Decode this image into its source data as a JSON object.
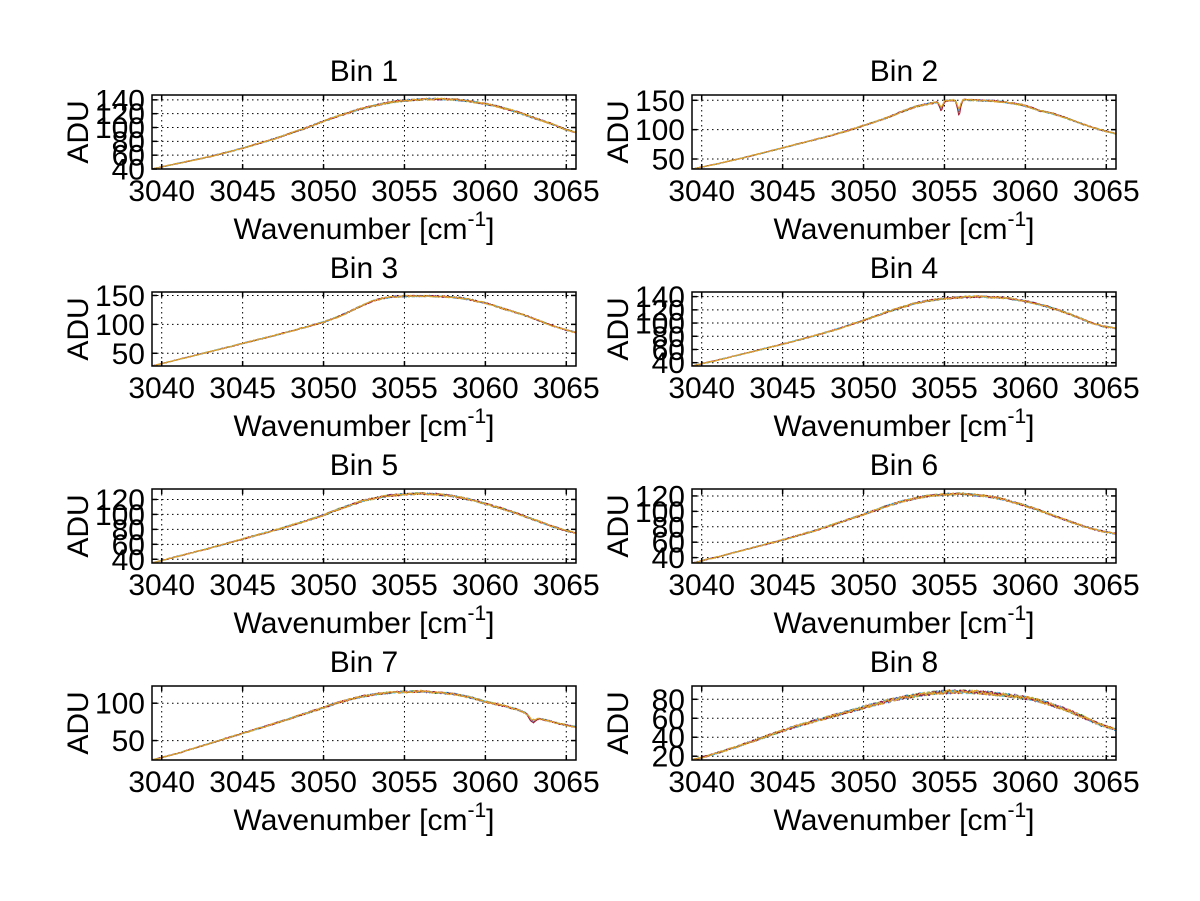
{
  "figure": {
    "background": "#ffffff",
    "axis_color": "#000000",
    "grid_color": "#000000",
    "series_colors": [
      "#0072BD",
      "#77AC30",
      "#7E2F8E",
      "#4DBEEE",
      "#A2142F"
    ],
    "top_series_color": "#DFA32B",
    "ylabel": "ADU",
    "xlabel_main": "Wavenumber [cm",
    "xlabel_sup": "-1",
    "xlabel_close": "]"
  },
  "chart_data": [
    {
      "type": "line",
      "title": "Bin 1",
      "xlabel": "Wavenumber [cm^-1]",
      "ylabel": "ADU",
      "xlim": [
        3039.4,
        3065.6
      ],
      "xticks": [
        3040,
        3045,
        3050,
        3055,
        3060,
        3065
      ],
      "ylim": [
        40,
        147
      ],
      "yticks": [
        40,
        60,
        80,
        100,
        120,
        140
      ],
      "grid": true,
      "seed": 11,
      "noise_amp": 1.5,
      "spikes": [],
      "profile": [
        [
          3039.4,
          40
        ],
        [
          3041,
          48
        ],
        [
          3043,
          58
        ],
        [
          3045,
          70
        ],
        [
          3046,
          77
        ],
        [
          3047,
          84
        ],
        [
          3048,
          92
        ],
        [
          3049,
          100
        ],
        [
          3050,
          109
        ],
        [
          3050.7,
          115
        ],
        [
          3051.5,
          121
        ],
        [
          3052.3,
          127
        ],
        [
          3053,
          131
        ],
        [
          3053.8,
          135
        ],
        [
          3054.6,
          138
        ],
        [
          3055.5,
          140
        ],
        [
          3056.5,
          141
        ],
        [
          3057.5,
          141
        ],
        [
          3058.3,
          140
        ],
        [
          3059,
          138
        ],
        [
          3059.8,
          135
        ],
        [
          3060.5,
          132
        ],
        [
          3061.3,
          127
        ],
        [
          3062,
          122
        ],
        [
          3063,
          114
        ],
        [
          3064,
          106
        ],
        [
          3065,
          97
        ],
        [
          3065.6,
          93
        ]
      ]
    },
    {
      "type": "line",
      "title": "Bin 2",
      "xlabel": "Wavenumber [cm^-1]",
      "ylabel": "ADU",
      "xlim": [
        3039.4,
        3065.6
      ],
      "xticks": [
        3040,
        3045,
        3050,
        3055,
        3060,
        3065
      ],
      "ylim": [
        33,
        159
      ],
      "yticks": [
        50,
        100,
        150
      ],
      "grid": true,
      "seed": 22,
      "noise_amp": 1.5,
      "spikes": [
        {
          "x": 3054.8,
          "d": 9,
          "w": 0.14
        },
        {
          "x": 3055.9,
          "d": 14,
          "w": 0.14
        }
      ],
      "profile": [
        [
          3039.4,
          33
        ],
        [
          3041,
          42
        ],
        [
          3043,
          55
        ],
        [
          3045,
          69
        ],
        [
          3047,
          83
        ],
        [
          3048,
          90
        ],
        [
          3049,
          98
        ],
        [
          3050,
          107
        ],
        [
          3050.8,
          114
        ],
        [
          3051.6,
          122
        ],
        [
          3052.4,
          131
        ],
        [
          3053.2,
          139
        ],
        [
          3054,
          144
        ],
        [
          3055,
          149
        ],
        [
          3056,
          151
        ],
        [
          3057,
          150
        ],
        [
          3058,
          149
        ],
        [
          3059,
          146
        ],
        [
          3059.8,
          142
        ],
        [
          3060.4,
          137
        ],
        [
          3060.9,
          132
        ],
        [
          3061.6,
          128
        ],
        [
          3062.3,
          122
        ],
        [
          3063,
          115
        ],
        [
          3064,
          105
        ],
        [
          3065,
          97
        ],
        [
          3065.6,
          93
        ]
      ]
    },
    {
      "type": "line",
      "title": "Bin 3",
      "xlabel": "Wavenumber [cm^-1]",
      "ylabel": "ADU",
      "xlim": [
        3039.4,
        3065.6
      ],
      "xticks": [
        3040,
        3045,
        3050,
        3055,
        3060,
        3065
      ],
      "ylim": [
        28,
        156
      ],
      "yticks": [
        50,
        100,
        150
      ],
      "grid": true,
      "seed": 33,
      "noise_amp": 1.5,
      "spikes": [],
      "profile": [
        [
          3039.4,
          28
        ],
        [
          3041,
          39
        ],
        [
          3043,
          53
        ],
        [
          3045,
          67
        ],
        [
          3047,
          81
        ],
        [
          3049,
          96
        ],
        [
          3050,
          104
        ],
        [
          3050.8,
          112
        ],
        [
          3051.6,
          122
        ],
        [
          3052.4,
          133
        ],
        [
          3053,
          140
        ],
        [
          3053.6,
          145
        ],
        [
          3054.4,
          148
        ],
        [
          3055.5,
          149
        ],
        [
          3056.5,
          149
        ],
        [
          3057.5,
          148
        ],
        [
          3058.4,
          146
        ],
        [
          3059.2,
          142
        ],
        [
          3060,
          137
        ],
        [
          3060.8,
          130
        ],
        [
          3061.5,
          124
        ],
        [
          3062.3,
          117
        ],
        [
          3063,
          110
        ],
        [
          3064,
          99
        ],
        [
          3065,
          90
        ],
        [
          3065.6,
          86
        ]
      ]
    },
    {
      "type": "line",
      "title": "Bin 4",
      "xlabel": "Wavenumber [cm^-1]",
      "ylabel": "ADU",
      "xlim": [
        3039.4,
        3065.6
      ],
      "xticks": [
        3040,
        3045,
        3050,
        3055,
        3060,
        3065
      ],
      "ylim": [
        35,
        147
      ],
      "yticks": [
        40,
        60,
        80,
        100,
        120,
        140
      ],
      "grid": true,
      "seed": 44,
      "noise_amp": 1.5,
      "spikes": [],
      "profile": [
        [
          3039.4,
          35
        ],
        [
          3041,
          44
        ],
        [
          3043,
          56
        ],
        [
          3045,
          68
        ],
        [
          3047,
          81
        ],
        [
          3048,
          88
        ],
        [
          3049,
          96
        ],
        [
          3050,
          104
        ],
        [
          3050.8,
          111
        ],
        [
          3051.6,
          118
        ],
        [
          3052.4,
          124
        ],
        [
          3053.2,
          130
        ],
        [
          3054,
          134
        ],
        [
          3055,
          137
        ],
        [
          3056,
          139
        ],
        [
          3057,
          140
        ],
        [
          3058,
          139
        ],
        [
          3058.8,
          138
        ],
        [
          3059.6,
          135
        ],
        [
          3060.4,
          131
        ],
        [
          3061.2,
          126
        ],
        [
          3062,
          120
        ],
        [
          3063,
          111
        ],
        [
          3064,
          101
        ],
        [
          3064.8,
          95
        ],
        [
          3065.6,
          92
        ]
      ]
    },
    {
      "type": "line",
      "title": "Bin 5",
      "xlabel": "Wavenumber [cm^-1]",
      "ylabel": "ADU",
      "xlim": [
        3039.4,
        3065.6
      ],
      "xticks": [
        3040,
        3045,
        3050,
        3055,
        3060,
        3065
      ],
      "ylim": [
        35,
        134
      ],
      "yticks": [
        40,
        60,
        80,
        100,
        120
      ],
      "grid": true,
      "seed": 55,
      "noise_amp": 1.5,
      "spikes": [],
      "profile": [
        [
          3039.4,
          35
        ],
        [
          3041,
          44
        ],
        [
          3043,
          55
        ],
        [
          3044.5,
          64
        ],
        [
          3046,
          73
        ],
        [
          3047.5,
          82
        ],
        [
          3049,
          92
        ],
        [
          3050,
          99
        ],
        [
          3050.8,
          106
        ],
        [
          3051.6,
          112
        ],
        [
          3052.4,
          118
        ],
        [
          3053.2,
          122
        ],
        [
          3054,
          125
        ],
        [
          3055,
          127
        ],
        [
          3056,
          128
        ],
        [
          3057,
          127
        ],
        [
          3057.8,
          125
        ],
        [
          3058.6,
          122
        ],
        [
          3059.4,
          118
        ],
        [
          3060.2,
          113
        ],
        [
          3061,
          108
        ],
        [
          3062,
          101
        ],
        [
          3063,
          93
        ],
        [
          3064,
          85
        ],
        [
          3065,
          78
        ],
        [
          3065.6,
          75
        ]
      ]
    },
    {
      "type": "line",
      "title": "Bin 6",
      "xlabel": "Wavenumber [cm^-1]",
      "ylabel": "ADU",
      "xlim": [
        3039.4,
        3065.6
      ],
      "xticks": [
        3040,
        3045,
        3050,
        3055,
        3060,
        3065
      ],
      "ylim": [
        33,
        129
      ],
      "yticks": [
        40,
        60,
        80,
        100,
        120
      ],
      "grid": true,
      "seed": 66,
      "noise_amp": 1.5,
      "spikes": [],
      "profile": [
        [
          3039.4,
          33
        ],
        [
          3041,
          41
        ],
        [
          3043,
          52
        ],
        [
          3045,
          63
        ],
        [
          3047,
          75
        ],
        [
          3048,
          82
        ],
        [
          3049,
          89
        ],
        [
          3050,
          96
        ],
        [
          3050.8,
          102
        ],
        [
          3051.6,
          108
        ],
        [
          3052.4,
          113
        ],
        [
          3053.2,
          117
        ],
        [
          3054,
          120
        ],
        [
          3055,
          122
        ],
        [
          3056,
          123
        ],
        [
          3057,
          121
        ],
        [
          3057.8,
          119
        ],
        [
          3058.6,
          116
        ],
        [
          3059.4,
          111
        ],
        [
          3060.2,
          106
        ],
        [
          3061,
          100
        ],
        [
          3061.8,
          94
        ],
        [
          3062.6,
          88
        ],
        [
          3063.4,
          82
        ],
        [
          3064.2,
          77
        ],
        [
          3065,
          73
        ],
        [
          3065.6,
          71
        ]
      ]
    },
    {
      "type": "line",
      "title": "Bin 7",
      "xlabel": "Wavenumber [cm^-1]",
      "ylabel": "ADU",
      "xlim": [
        3039.4,
        3065.6
      ],
      "xticks": [
        3040,
        3045,
        3050,
        3055,
        3060,
        3065
      ],
      "ylim": [
        24,
        123
      ],
      "yticks": [
        50,
        100
      ],
      "grid": true,
      "seed": 77,
      "noise_amp": 1.5,
      "spikes": [
        {
          "x": 3062.9,
          "d": 5,
          "w": 0.25
        }
      ],
      "profile": [
        [
          3039.4,
          24
        ],
        [
          3041,
          33
        ],
        [
          3042.5,
          43
        ],
        [
          3044,
          53
        ],
        [
          3045.5,
          63
        ],
        [
          3047,
          73
        ],
        [
          3048,
          80
        ],
        [
          3049,
          87
        ],
        [
          3050,
          94
        ],
        [
          3050.8,
          100
        ],
        [
          3051.6,
          105
        ],
        [
          3052.4,
          109
        ],
        [
          3053.2,
          112
        ],
        [
          3054,
          114
        ],
        [
          3055,
          115
        ],
        [
          3056,
          116
        ],
        [
          3057,
          114
        ],
        [
          3057.8,
          113
        ],
        [
          3058.6,
          110
        ],
        [
          3059.4,
          106
        ],
        [
          3060,
          102
        ],
        [
          3060.6,
          99
        ],
        [
          3061.2,
          96
        ],
        [
          3061.9,
          92
        ],
        [
          3062.6,
          86
        ],
        [
          3063.2,
          80
        ],
        [
          3063.8,
          77
        ],
        [
          3064.5,
          73
        ],
        [
          3065.6,
          68
        ]
      ]
    },
    {
      "type": "line",
      "title": "Bin 8",
      "xlabel": "Wavenumber [cm^-1]",
      "ylabel": "ADU",
      "xlim": [
        3039.4,
        3065.6
      ],
      "xticks": [
        3040,
        3045,
        3050,
        3055,
        3060,
        3065
      ],
      "ylim": [
        16,
        94
      ],
      "yticks": [
        20,
        40,
        60,
        80
      ],
      "grid": true,
      "seed": 88,
      "noise_amp": 2.2,
      "spikes": [],
      "profile": [
        [
          3039.4,
          16
        ],
        [
          3040.5,
          21
        ],
        [
          3042,
          29
        ],
        [
          3043.5,
          38
        ],
        [
          3045,
          47
        ],
        [
          3046.5,
          55
        ],
        [
          3048,
          62
        ],
        [
          3049.5,
          69
        ],
        [
          3050.5,
          74
        ],
        [
          3051.5,
          78
        ],
        [
          3052.5,
          82
        ],
        [
          3053.5,
          85
        ],
        [
          3054.5,
          87
        ],
        [
          3055.5,
          88
        ],
        [
          3056.5,
          88
        ],
        [
          3057.5,
          87
        ],
        [
          3058.5,
          85
        ],
        [
          3059.5,
          83
        ],
        [
          3060.5,
          80
        ],
        [
          3061.5,
          75
        ],
        [
          3062.5,
          69
        ],
        [
          3063.5,
          62
        ],
        [
          3064.5,
          54
        ],
        [
          3065.6,
          48
        ]
      ]
    }
  ]
}
